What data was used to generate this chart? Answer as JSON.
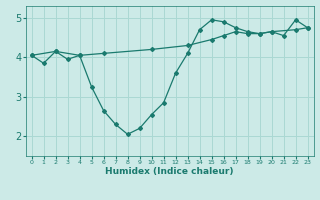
{
  "xlabel": "Humidex (Indice chaleur)",
  "bg_color": "#cceae7",
  "grid_color": "#aad8d3",
  "line_color": "#1a7a6e",
  "line1_x": [
    0,
    1,
    2,
    3,
    4,
    5,
    6,
    7,
    8,
    9,
    10,
    11,
    12,
    13,
    14,
    15,
    16,
    17,
    18,
    19,
    20,
    21,
    22,
    23
  ],
  "line1_y": [
    4.05,
    3.85,
    4.15,
    3.95,
    4.05,
    3.25,
    2.65,
    2.3,
    2.05,
    2.2,
    2.55,
    2.85,
    3.6,
    4.1,
    4.7,
    4.95,
    4.9,
    4.75,
    4.65,
    4.6,
    4.65,
    4.55,
    4.95,
    4.75
  ],
  "line2_x": [
    0,
    2,
    4,
    6,
    10,
    13,
    15,
    16,
    17,
    18,
    19,
    20,
    22,
    23
  ],
  "line2_y": [
    4.05,
    4.15,
    4.05,
    4.1,
    4.2,
    4.3,
    4.45,
    4.55,
    4.65,
    4.6,
    4.6,
    4.65,
    4.7,
    4.75
  ],
  "ylim": [
    1.5,
    5.3
  ],
  "xlim": [
    -0.5,
    23.5
  ],
  "yticks": [
    2,
    3,
    4,
    5
  ],
  "xticks": [
    0,
    1,
    2,
    3,
    4,
    5,
    6,
    7,
    8,
    9,
    10,
    11,
    12,
    13,
    14,
    15,
    16,
    17,
    18,
    19,
    20,
    21,
    22,
    23
  ],
  "xtick_labels": [
    "0",
    "1",
    "2",
    "3",
    "4",
    "5",
    "6",
    "7",
    "8",
    "9",
    "10",
    "11",
    "12",
    "13",
    "14",
    "15",
    "16",
    "17",
    "18",
    "19",
    "20",
    "21",
    "22",
    "23"
  ]
}
